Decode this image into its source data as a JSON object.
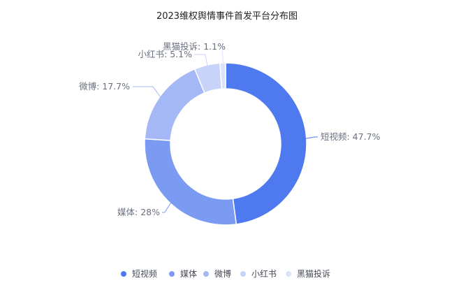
{
  "chart_data": {
    "type": "pie",
    "variant": "donut",
    "title": "2023维权舆情事件首发平台分布图",
    "series": [
      {
        "name": "短视频",
        "value": 47.7,
        "label": "短视频: 47.7%",
        "color": "#4e79ef"
      },
      {
        "name": "媒体",
        "value": 28,
        "label": "媒体: 28%",
        "color": "#7b9bf2"
      },
      {
        "name": "微博",
        "value": 17.7,
        "label": "微博: 17.7%",
        "color": "#a4b8f6"
      },
      {
        "name": "小红书",
        "value": 5.1,
        "label": "小红书: 5.1%",
        "color": "#c7d3f9"
      },
      {
        "name": "黑猫投诉",
        "value": 1.1,
        "label": "黑猫投诉: 1.1%",
        "color": "#dbe3fb"
      }
    ],
    "legend_position": "bottom"
  }
}
